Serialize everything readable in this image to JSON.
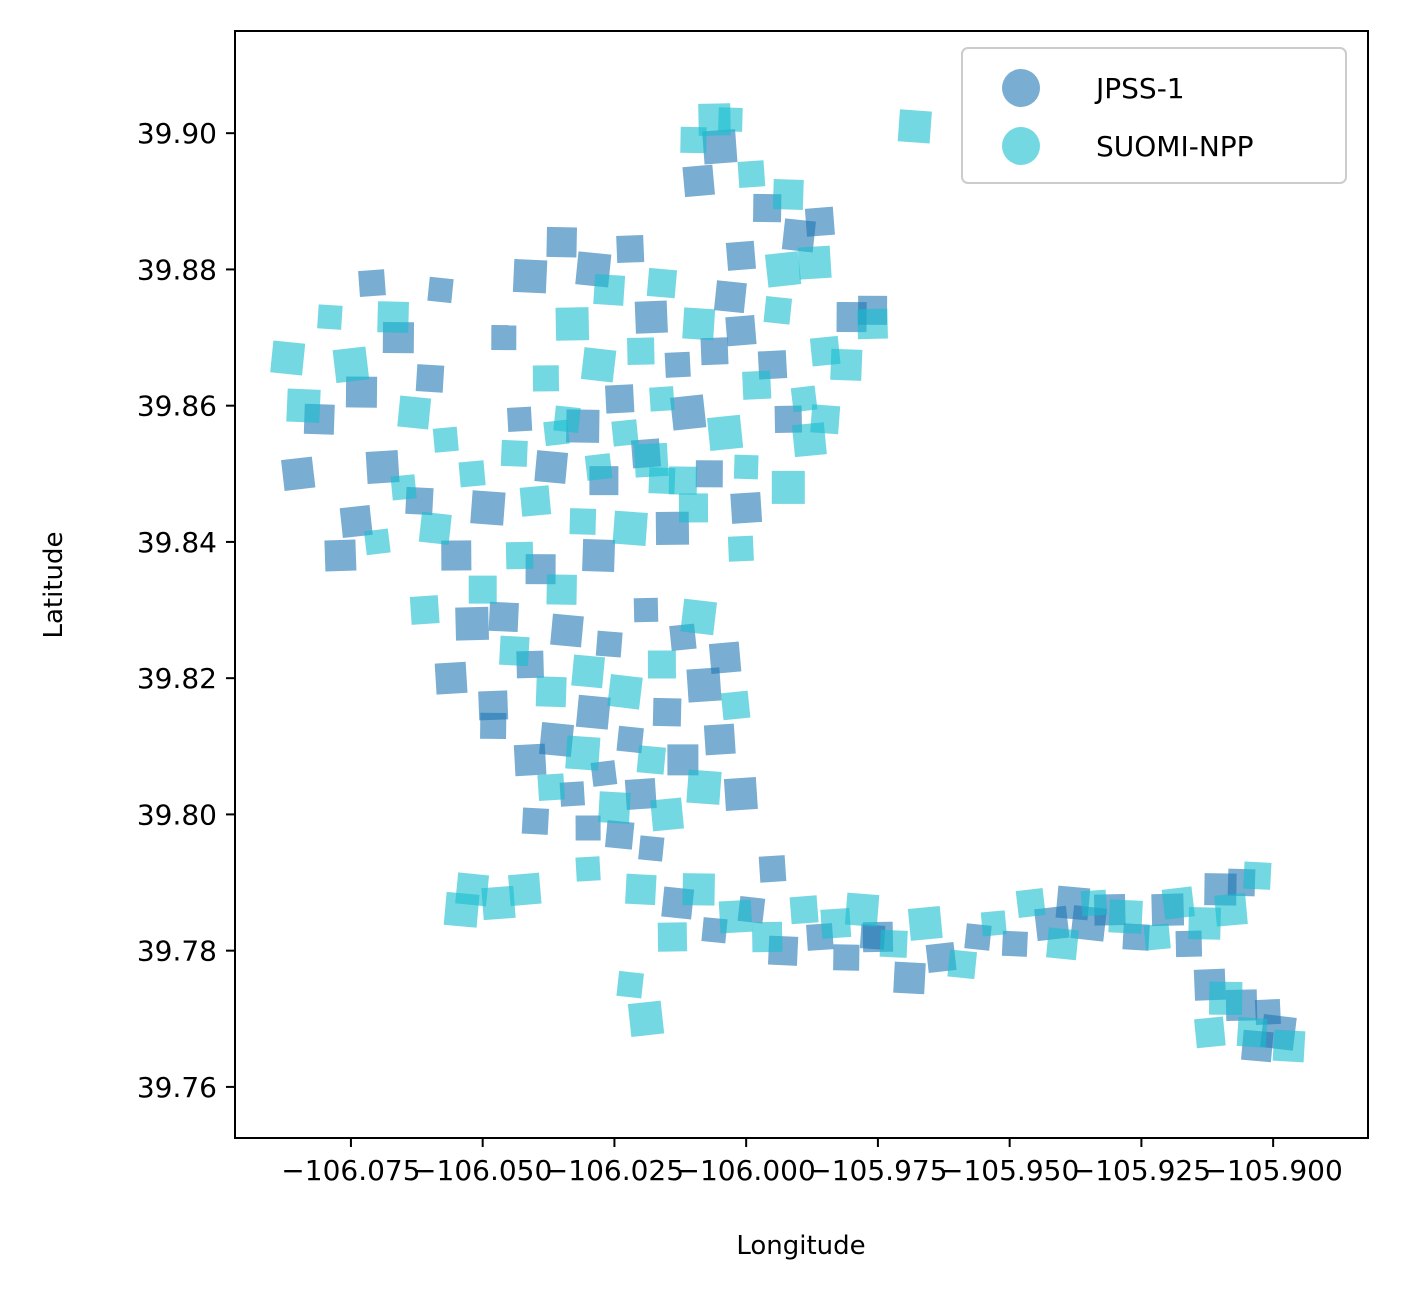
{
  "chart_data": {
    "type": "scatter",
    "title": "",
    "xlabel": "Longitude",
    "ylabel": "Latitude",
    "xlim": [
      -106.097,
      -105.882
    ],
    "ylim": [
      39.7525,
      39.915
    ],
    "xticks": [
      -106.075,
      -106.05,
      -106.025,
      -106.0,
      -105.975,
      -105.95,
      -105.925,
      -105.9
    ],
    "xtick_labels": [
      "−106.075",
      "−106.050",
      "−106.025",
      "−106.000",
      "−105.975",
      "−105.950",
      "−105.925",
      "−105.900"
    ],
    "yticks": [
      39.76,
      39.78,
      39.8,
      39.82,
      39.84,
      39.86,
      39.88,
      39.9
    ],
    "ytick_labels": [
      "39.76",
      "39.78",
      "39.80",
      "39.82",
      "39.84",
      "39.86",
      "39.88",
      "39.90"
    ],
    "grid": false,
    "legend_position": "top-right",
    "marker": "square",
    "series": [
      {
        "name": "JPSS-1",
        "color": "#1f77b4",
        "alpha": 0.6,
        "points": [
          [
            -106.058,
            39.877
          ],
          [
            -106.071,
            39.878
          ],
          [
            -106.066,
            39.87
          ],
          [
            -106.06,
            39.864
          ],
          [
            -106.073,
            39.862
          ],
          [
            -106.081,
            39.858
          ],
          [
            -106.069,
            39.851
          ],
          [
            -106.062,
            39.846
          ],
          [
            -106.074,
            39.843
          ],
          [
            -106.055,
            39.838
          ],
          [
            -106.049,
            39.845
          ],
          [
            -106.046,
            39.87
          ],
          [
            -106.041,
            39.879
          ],
          [
            -106.035,
            39.884
          ],
          [
            -106.029,
            39.88
          ],
          [
            -106.022,
            39.883
          ],
          [
            -106.018,
            39.873
          ],
          [
            -106.013,
            39.866
          ],
          [
            -106.024,
            39.861
          ],
          [
            -106.031,
            39.857
          ],
          [
            -106.037,
            39.851
          ],
          [
            -106.043,
            39.858
          ],
          [
            -106.027,
            39.849
          ],
          [
            -106.019,
            39.853
          ],
          [
            -106.011,
            39.859
          ],
          [
            -106.006,
            39.868
          ],
          [
            -106.003,
            39.876
          ],
          [
            -106.001,
            39.871
          ],
          [
            -105.995,
            39.866
          ],
          [
            -105.992,
            39.858
          ],
          [
            -106.007,
            39.85
          ],
          [
            -106.0,
            39.845
          ],
          [
            -106.014,
            39.842
          ],
          [
            -106.028,
            39.838
          ],
          [
            -106.039,
            39.836
          ],
          [
            -106.046,
            39.829
          ],
          [
            -106.052,
            39.828
          ],
          [
            -106.056,
            39.82
          ],
          [
            -106.048,
            39.816
          ],
          [
            -106.041,
            39.822
          ],
          [
            -106.034,
            39.827
          ],
          [
            -106.026,
            39.825
          ],
          [
            -106.019,
            39.83
          ],
          [
            -106.012,
            39.826
          ],
          [
            -106.008,
            39.819
          ],
          [
            -106.004,
            39.823
          ],
          [
            -106.015,
            39.815
          ],
          [
            -106.022,
            39.811
          ],
          [
            -106.029,
            39.815
          ],
          [
            -106.036,
            39.811
          ],
          [
            -106.041,
            39.808
          ],
          [
            -106.033,
            39.803
          ],
          [
            -106.027,
            39.806
          ],
          [
            -106.02,
            39.803
          ],
          [
            -106.012,
            39.808
          ],
          [
            -106.005,
            39.811
          ],
          [
            -106.001,
            39.803
          ],
          [
            -106.024,
            39.797
          ],
          [
            -106.03,
            39.798
          ],
          [
            -106.018,
            39.795
          ],
          [
            -106.013,
            39.787
          ],
          [
            -106.006,
            39.783
          ],
          [
            -105.999,
            39.786
          ],
          [
            -105.993,
            39.78
          ],
          [
            -105.986,
            39.782
          ],
          [
            -105.981,
            39.779
          ],
          [
            -105.976,
            39.782
          ],
          [
            -105.969,
            39.776
          ],
          [
            -105.963,
            39.779
          ],
          [
            -105.956,
            39.782
          ],
          [
            -105.949,
            39.781
          ],
          [
            -105.942,
            39.784
          ],
          [
            -105.938,
            39.787
          ],
          [
            -105.935,
            39.784
          ],
          [
            -105.931,
            39.786
          ],
          [
            -105.926,
            39.782
          ],
          [
            -105.92,
            39.786
          ],
          [
            -105.916,
            39.781
          ],
          [
            -105.91,
            39.789
          ],
          [
            -105.906,
            39.79
          ],
          [
            -105.912,
            39.775
          ],
          [
            -105.906,
            39.772
          ],
          [
            -105.901,
            39.771
          ],
          [
            -105.899,
            39.768
          ],
          [
            -105.903,
            39.766
          ],
          [
            -106.005,
            39.898
          ],
          [
            -106.009,
            39.893
          ],
          [
            -105.996,
            39.889
          ],
          [
            -105.99,
            39.885
          ],
          [
            -105.986,
            39.887
          ],
          [
            -106.001,
            39.882
          ],
          [
            -105.98,
            39.873
          ],
          [
            -105.976,
            39.874
          ],
          [
            -106.077,
            39.838
          ],
          [
            -106.085,
            39.85
          ],
          [
            -106.048,
            39.813
          ],
          [
            -106.04,
            39.799
          ],
          [
            -105.995,
            39.792
          ],
          [
            -105.975,
            39.782
          ]
        ]
      },
      {
        "name": "SUOMI-NPP",
        "color": "#17becf",
        "alpha": 0.6,
        "points": [
          [
            -106.079,
            39.873
          ],
          [
            -106.087,
            39.867
          ],
          [
            -106.084,
            39.86
          ],
          [
            -106.075,
            39.866
          ],
          [
            -106.067,
            39.873
          ],
          [
            -106.063,
            39.859
          ],
          [
            -106.057,
            39.855
          ],
          [
            -106.065,
            39.848
          ],
          [
            -106.07,
            39.84
          ],
          [
            -106.059,
            39.842
          ],
          [
            -106.052,
            39.85
          ],
          [
            -106.044,
            39.853
          ],
          [
            -106.038,
            39.864
          ],
          [
            -106.033,
            39.872
          ],
          [
            -106.026,
            39.877
          ],
          [
            -106.02,
            39.868
          ],
          [
            -106.016,
            39.861
          ],
          [
            -106.028,
            39.866
          ],
          [
            -106.034,
            39.858
          ],
          [
            -106.04,
            39.846
          ],
          [
            -106.031,
            39.843
          ],
          [
            -106.023,
            39.856
          ],
          [
            -106.016,
            39.849
          ],
          [
            -106.01,
            39.845
          ],
          [
            -106.004,
            39.856
          ],
          [
            -105.998,
            39.863
          ],
          [
            -105.989,
            39.861
          ],
          [
            -105.985,
            39.868
          ],
          [
            -105.994,
            39.874
          ],
          [
            -106.009,
            39.872
          ],
          [
            -106.016,
            39.878
          ],
          [
            -106.022,
            39.842
          ],
          [
            -106.035,
            39.833
          ],
          [
            -106.043,
            39.838
          ],
          [
            -106.05,
            39.833
          ],
          [
            -106.044,
            39.824
          ],
          [
            -106.037,
            39.818
          ],
          [
            -106.03,
            39.821
          ],
          [
            -106.023,
            39.818
          ],
          [
            -106.016,
            39.822
          ],
          [
            -106.009,
            39.829
          ],
          [
            -106.002,
            39.816
          ],
          [
            -106.018,
            39.808
          ],
          [
            -106.025,
            39.801
          ],
          [
            -106.031,
            39.809
          ],
          [
            -106.037,
            39.804
          ],
          [
            -106.015,
            39.8
          ],
          [
            -106.008,
            39.804
          ],
          [
            -106.02,
            39.789
          ],
          [
            -106.014,
            39.782
          ],
          [
            -106.009,
            39.789
          ],
          [
            -106.002,
            39.785
          ],
          [
            -105.996,
            39.782
          ],
          [
            -105.989,
            39.786
          ],
          [
            -105.983,
            39.784
          ],
          [
            -105.978,
            39.786
          ],
          [
            -105.972,
            39.781
          ],
          [
            -105.966,
            39.784
          ],
          [
            -105.959,
            39.778
          ],
          [
            -105.953,
            39.784
          ],
          [
            -105.946,
            39.787
          ],
          [
            -105.94,
            39.781
          ],
          [
            -105.934,
            39.787
          ],
          [
            -105.928,
            39.785
          ],
          [
            -105.922,
            39.782
          ],
          [
            -105.918,
            39.787
          ],
          [
            -105.913,
            39.784
          ],
          [
            -105.908,
            39.786
          ],
          [
            -105.903,
            39.791
          ],
          [
            -105.909,
            39.773
          ],
          [
            -105.904,
            39.768
          ],
          [
            -105.897,
            39.766
          ],
          [
            -105.912,
            39.768
          ],
          [
            -106.003,
            39.902
          ],
          [
            -106.01,
            39.899
          ],
          [
            -105.999,
            39.894
          ],
          [
            -105.992,
            39.891
          ],
          [
            -105.987,
            39.881
          ],
          [
            -105.993,
            39.88
          ],
          [
            -105.976,
            39.872
          ],
          [
            -105.981,
            39.866
          ],
          [
            -105.988,
            39.855
          ],
          [
            -105.992,
            39.848
          ],
          [
            -106.006,
            39.902
          ],
          [
            -105.968,
            39.901
          ],
          [
            -106.052,
            39.789
          ],
          [
            -106.047,
            39.787
          ],
          [
            -106.042,
            39.789
          ],
          [
            -106.022,
            39.775
          ],
          [
            -106.019,
            39.77
          ],
          [
            -106.03,
            39.792
          ],
          [
            -106.054,
            39.786
          ],
          [
            -106.018,
            39.852
          ],
          [
            -106.028,
            39.851
          ],
          [
            -106.012,
            39.849
          ],
          [
            -106.001,
            39.839
          ],
          [
            -106.061,
            39.83
          ],
          [
            -106.036,
            39.856
          ],
          [
            -106.0,
            39.851
          ],
          [
            -105.985,
            39.858
          ]
        ]
      }
    ]
  }
}
